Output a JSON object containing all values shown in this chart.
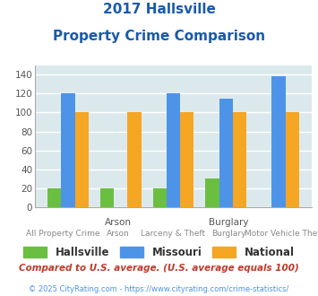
{
  "title_line1": "2017 Hallsville",
  "title_line2": "Property Crime Comparison",
  "categories": [
    "All Property Crime",
    "Arson",
    "Larceny & Theft",
    "Burglary",
    "Motor Vehicle Theft"
  ],
  "top_labels": [
    "",
    "Arson",
    "",
    "Burglary",
    ""
  ],
  "hallsville": [
    20,
    20,
    20,
    30,
    0
  ],
  "missouri": [
    120,
    0,
    120,
    115,
    138
  ],
  "national": [
    100,
    100,
    100,
    100,
    100
  ],
  "hallsville_color": "#6abf40",
  "missouri_color": "#4d94e8",
  "national_color": "#f5a623",
  "bg_color": "#dce9ec",
  "ylim": [
    0,
    150
  ],
  "yticks": [
    0,
    20,
    40,
    60,
    80,
    100,
    120,
    140
  ],
  "footnote1": "Compared to U.S. average. (U.S. average equals 100)",
  "footnote2": "© 2025 CityRating.com - https://www.cityrating.com/crime-statistics/",
  "title_color": "#1a5aaa",
  "footnote1_color": "#c0392b",
  "footnote2_color": "#4d94e8"
}
